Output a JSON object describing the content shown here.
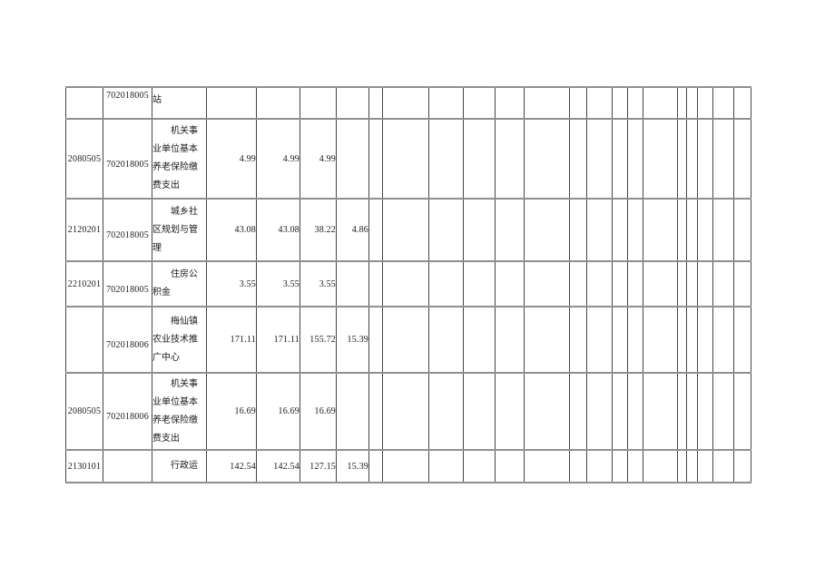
{
  "page": {
    "background_color": "#ffffff",
    "text_color": "#1a1a1a"
  },
  "table": {
    "grid_colors": {
      "vertical_line": "#454545",
      "horizontal_line": "#8f8f8f"
    },
    "column_roles": [
      "function-code",
      "unit-code",
      "item-name",
      "amount-1",
      "amount-2",
      "amount-3",
      "amount-4"
    ],
    "rows": [
      {
        "fragment": true,
        "code1": "",
        "code2": "702018005",
        "desc": "站",
        "values": [
          "",
          "",
          "",
          ""
        ]
      },
      {
        "fragment": false,
        "code1": "2080505",
        "code2": "702018005",
        "desc": "机关事业单位基本养老保险缴费支出",
        "values": [
          "4.99",
          "4.99",
          "4.99",
          ""
        ]
      },
      {
        "fragment": false,
        "code1": "2120201",
        "code2": "702018005",
        "desc": "城乡社区规划与管理",
        "values": [
          "43.08",
          "43.08",
          "38.22",
          "4.86"
        ]
      },
      {
        "fragment": false,
        "code1": "2210201",
        "code2": "702018005",
        "desc": "住房公积金",
        "values": [
          "3.55",
          "3.55",
          "3.55",
          ""
        ]
      },
      {
        "fragment": false,
        "code1": "",
        "code2": "702018006",
        "desc": "梅仙镇农业技术推广中心",
        "values": [
          "171.11",
          "171.11",
          "155.72",
          "15.39"
        ]
      },
      {
        "fragment": false,
        "code1": "2080505",
        "code2": "702018006",
        "desc": "机关事业单位基本养老保险缴费支出",
        "values": [
          "16.69",
          "16.69",
          "16.69",
          ""
        ]
      },
      {
        "fragment": false,
        "code1": "2130101",
        "code2": "",
        "desc": "行政运",
        "values": [
          "142.54",
          "142.54",
          "127.15",
          "15.39"
        ]
      }
    ]
  }
}
